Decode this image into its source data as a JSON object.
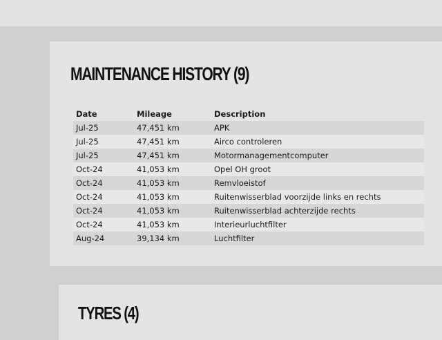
{
  "maintenance": {
    "title": "MAINTENANCE HISTORY (9)",
    "columns": [
      "Date",
      "Mileage",
      "Description"
    ],
    "rows": [
      [
        "Jul-25",
        "47,451 km",
        "APK"
      ],
      [
        "Jul-25",
        "47,451 km",
        "Airco controleren"
      ],
      [
        "Jul-25",
        "47,451 km",
        "Motormanagementcomputer"
      ],
      [
        "Oct-24",
        "41,053 km",
        "Opel OH groot"
      ],
      [
        "Oct-24",
        "41,053 km",
        "Remvloeistof"
      ],
      [
        "Oct-24",
        "41,053 km",
        "Ruitenwisserblad voorzijde links en rechts"
      ],
      [
        "Oct-24",
        "41,053 km",
        "Ruitenwisserblad achterzijde rechts"
      ],
      [
        "Oct-24",
        "41,053 km",
        "Interieurluchtfilter"
      ],
      [
        "Aug-24",
        "39,134 km",
        "Luchtfilter"
      ]
    ]
  },
  "tyres": {
    "title": "TYRES (4)"
  }
}
